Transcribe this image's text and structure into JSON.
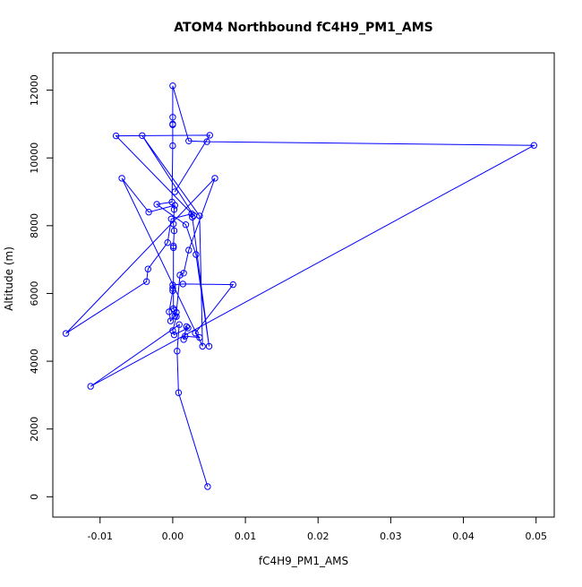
{
  "chart_data": {
    "type": "line",
    "title": "ATOM4 Northbound fC4H9_PM1_AMS",
    "xlabel": "fC4H9_PM1_AMS",
    "ylabel": "Altitude (m)",
    "xlim": [
      -0.0165,
      0.0525
    ],
    "ylim": [
      -600,
      13100
    ],
    "xticks": [
      -0.01,
      0.0,
      0.01,
      0.02,
      0.03,
      0.04,
      0.05
    ],
    "xtick_labels": [
      "-0.01",
      "0.00",
      "0.01",
      "0.02",
      "0.03",
      "0.04",
      "0.05"
    ],
    "yticks": [
      0,
      2000,
      4000,
      6000,
      8000,
      10000,
      12000
    ],
    "ytick_labels": [
      "0",
      "2000",
      "4000",
      "6000",
      "8000",
      "10000",
      "12000"
    ],
    "grid": false,
    "colors": {
      "series": "#0000ff",
      "axes": "#000000"
    },
    "series": [
      {
        "marker": "open-circle",
        "points": [
          [
            0.0048,
            300
          ],
          [
            0.0008,
            3070
          ],
          [
            0.0006,
            4300
          ],
          [
            0.0009,
            5080
          ],
          [
            -0.0113,
            3260
          ],
          [
            0.0497,
            10370
          ],
          [
            0.0047,
            10480
          ],
          [
            0.0022,
            10500
          ],
          [
            0.0,
            12130
          ],
          [
            0.0,
            11200
          ],
          [
            0.0,
            11000
          ],
          [
            0.0,
            10980
          ],
          [
            0.0,
            10360
          ],
          [
            -0.0001,
            8700
          ],
          [
            -0.0022,
            8630
          ],
          [
            0.0018,
            8030
          ],
          [
            0.0032,
            7150
          ],
          [
            0.005,
            4440
          ],
          [
            0.0027,
            8250
          ],
          [
            0.0026,
            8350
          ],
          [
            -0.0002,
            8200
          ],
          [
            -0.0007,
            7500
          ],
          [
            -0.0034,
            6720
          ],
          [
            -0.0036,
            6350
          ],
          [
            -0.0147,
            4820
          ],
          [
            0.0058,
            9400
          ],
          [
            0.0022,
            7280
          ],
          [
            0.0015,
            6600
          ],
          [
            0.001,
            6540
          ],
          [
            0.0005,
            5440
          ],
          [
            0.0003,
            5330
          ],
          [
            -0.0003,
            5190
          ],
          [
            -0.0005,
            5460
          ],
          [
            0.0,
            6080
          ],
          [
            0.0,
            6150
          ],
          [
            0.0,
            6250
          ],
          [
            0.0014,
            6280
          ],
          [
            0.0083,
            6260
          ],
          [
            0.0031,
            4830
          ],
          [
            0.0037,
            4700
          ],
          [
            0.0017,
            4740
          ],
          [
            0.0015,
            4640
          ],
          [
            0.0019,
            5020
          ],
          [
            0.0021,
            4980
          ],
          [
            0.0002,
            4780
          ],
          [
            0.0,
            4900
          ],
          [
            0.0005,
            5320
          ],
          [
            0.0002,
            5500
          ],
          [
            0.0001,
            5550
          ],
          [
            0.0001,
            7350
          ],
          [
            0.0001,
            7400
          ],
          [
            0.0002,
            7850
          ],
          [
            0.0001,
            8050
          ],
          [
            0.0002,
            8480
          ],
          [
            0.0003,
            8600
          ],
          [
            -0.0033,
            8400
          ],
          [
            -0.007,
            9400
          ],
          [
            0.0041,
            4440
          ],
          [
            0.0037,
            8290
          ],
          [
            -0.0042,
            10660
          ],
          [
            0.0029,
            8300
          ],
          [
            -0.0078,
            10650
          ],
          [
            0.0051,
            10670
          ],
          [
            0.0003,
            9000
          ]
        ]
      }
    ]
  }
}
